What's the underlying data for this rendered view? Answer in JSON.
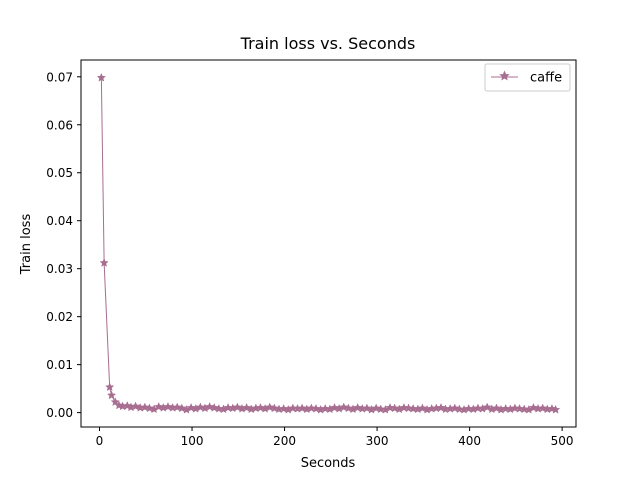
{
  "chart_data": {
    "type": "line",
    "title": "Train loss  vs. Seconds",
    "xlabel": "Seconds",
    "ylabel": "Train loss",
    "xlim": [
      -20,
      515
    ],
    "ylim": [
      -0.003,
      0.0735
    ],
    "xticks": [
      0,
      100,
      200,
      300,
      400,
      500
    ],
    "xtick_labels": [
      "0",
      "100",
      "200",
      "300",
      "400",
      "500"
    ],
    "yticks": [
      0.0,
      0.01,
      0.02,
      0.03,
      0.04,
      0.05,
      0.06,
      0.07
    ],
    "ytick_labels": [
      "0.00",
      "0.01",
      "0.02",
      "0.03",
      "0.04",
      "0.05",
      "0.06",
      "0.07"
    ],
    "grid": false,
    "legend_position": "top-right",
    "series": [
      {
        "name": "caffe",
        "color": "#a86e91",
        "marker": "star",
        "x": [
          2,
          5,
          11,
          13,
          17,
          21,
          25,
          30,
          34,
          39,
          44,
          49,
          54,
          59,
          64,
          69,
          74,
          79,
          84,
          89,
          94,
          99,
          104,
          109,
          114,
          119,
          124,
          129,
          134,
          139,
          144,
          149,
          154,
          159,
          164,
          169,
          174,
          179,
          184,
          189,
          194,
          199,
          204,
          209,
          214,
          219,
          224,
          229,
          234,
          239,
          244,
          249,
          254,
          259,
          264,
          269,
          274,
          279,
          284,
          289,
          294,
          299,
          304,
          309,
          314,
          319,
          324,
          329,
          334,
          339,
          344,
          349,
          354,
          359,
          364,
          369,
          374,
          379,
          384,
          389,
          394,
          399,
          404,
          409,
          414,
          419,
          424,
          429,
          434,
          439,
          444,
          449,
          454,
          459,
          464,
          469,
          474,
          479,
          484,
          489,
          493
        ],
        "y": [
          0.0698,
          0.0312,
          0.0053,
          0.0036,
          0.0022,
          0.0015,
          0.0013,
          0.0014,
          0.0011,
          0.0013,
          0.001,
          0.0011,
          0.0009,
          0.0007,
          0.0012,
          0.001,
          0.0012,
          0.001,
          0.0011,
          0.0009,
          0.0006,
          0.001,
          0.0008,
          0.0011,
          0.0009,
          0.0012,
          0.001,
          0.0008,
          0.0007,
          0.001,
          0.0009,
          0.0011,
          0.0008,
          0.001,
          0.0007,
          0.0009,
          0.001,
          0.0008,
          0.0011,
          0.0009,
          0.0007,
          0.0008,
          0.0006,
          0.0009,
          0.0008,
          0.0009,
          0.0007,
          0.0009,
          0.0008,
          0.0006,
          0.0008,
          0.0007,
          0.001,
          0.0008,
          0.0011,
          0.0009,
          0.0007,
          0.001,
          0.0008,
          0.0009,
          0.0006,
          0.0009,
          0.0007,
          0.0006,
          0.001,
          0.0009,
          0.0007,
          0.001,
          0.0009,
          0.0008,
          0.0007,
          0.0009,
          0.0006,
          0.0008,
          0.0009,
          0.001,
          0.0007,
          0.0008,
          0.0009,
          0.0007,
          0.0006,
          0.0008,
          0.0007,
          0.0009,
          0.0008,
          0.0011,
          0.0007,
          0.0009,
          0.0006,
          0.0008,
          0.0007,
          0.0009,
          0.0008,
          0.0007,
          0.0006,
          0.001,
          0.0008,
          0.0009,
          0.0007,
          0.0008,
          0.0006
        ]
      }
    ]
  }
}
